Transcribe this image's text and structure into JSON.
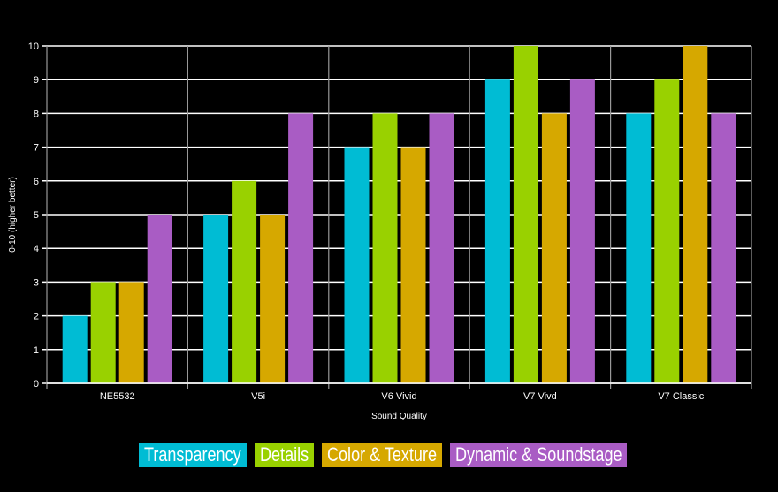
{
  "chart_data": {
    "type": "bar",
    "title": "",
    "xlabel": "Sound Quality",
    "ylabel": "0-10 (higher better)",
    "ylim": [
      0,
      10
    ],
    "yticks": [
      0,
      1,
      2,
      3,
      4,
      5,
      6,
      7,
      8,
      9,
      10
    ],
    "grid": true,
    "legend_placement": "bottom",
    "categories": [
      "NE5532",
      "V5i",
      "V6 Vivid",
      "V7 Vivd",
      "V7 Classic"
    ],
    "series": [
      {
        "name": "Transparency",
        "color": "#00bcd4",
        "values": [
          2,
          5,
          7,
          9,
          8
        ]
      },
      {
        "name": "Details",
        "color": "#99d100",
        "values": [
          3,
          6,
          8,
          10,
          9
        ]
      },
      {
        "name": "Color & Texture",
        "color": "#d6a800",
        "values": [
          3,
          5,
          7,
          8,
          10
        ]
      },
      {
        "name": "Dynamic & Soundstage",
        "color": "#a95cc4",
        "values": [
          5,
          8,
          8,
          9,
          8
        ]
      }
    ]
  }
}
